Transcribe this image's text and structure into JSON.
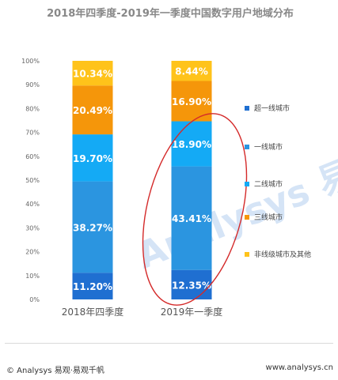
{
  "title": "2018年四季度-2019年一季度中国数字用户地域分布",
  "watermark_text": "Analysys 易观 · 你要的数据",
  "chart_data": {
    "type": "bar",
    "stacked": true,
    "title": "2018年四季度-2019年一季度中国数字用户地域分布",
    "categories": [
      "2018年四季度",
      "2019年一季度"
    ],
    "y_ticks": [
      "0%",
      "10%",
      "20%",
      "30%",
      "40%",
      "50%",
      "60%",
      "70%",
      "80%",
      "90%",
      "100%"
    ],
    "ylim": [
      0,
      100
    ],
    "legend_position": "right",
    "grid": false,
    "series": [
      {
        "name": "超一线城市",
        "color": "#1f6fd1",
        "values": [
          11.2,
          12.35
        ],
        "labels": [
          "11.20%",
          "12.35%"
        ]
      },
      {
        "name": "一线城市",
        "color": "#2b95e0",
        "values": [
          38.27,
          43.41
        ],
        "labels": [
          "38.27%",
          "43.41%"
        ]
      },
      {
        "name": "二线城市",
        "color": "#14aaf5",
        "values": [
          19.7,
          18.9
        ],
        "labels": [
          "19.70%",
          "18.90%"
        ]
      },
      {
        "name": "三线城市",
        "color": "#f5960a",
        "values": [
          20.49,
          16.9
        ],
        "labels": [
          "20.49%",
          "16.90%"
        ]
      },
      {
        "name": "非线级城市及其他",
        "color": "#ffc31a",
        "values": [
          10.34,
          8.44
        ],
        "labels": [
          "10.34%",
          "8.44%"
        ]
      }
    ],
    "highlight": {
      "category": "2019年一季度",
      "color": "#d42a2a"
    }
  },
  "footer": {
    "left": "© Analysys 易观·易观千帆",
    "right": "www.analysys.cn"
  }
}
